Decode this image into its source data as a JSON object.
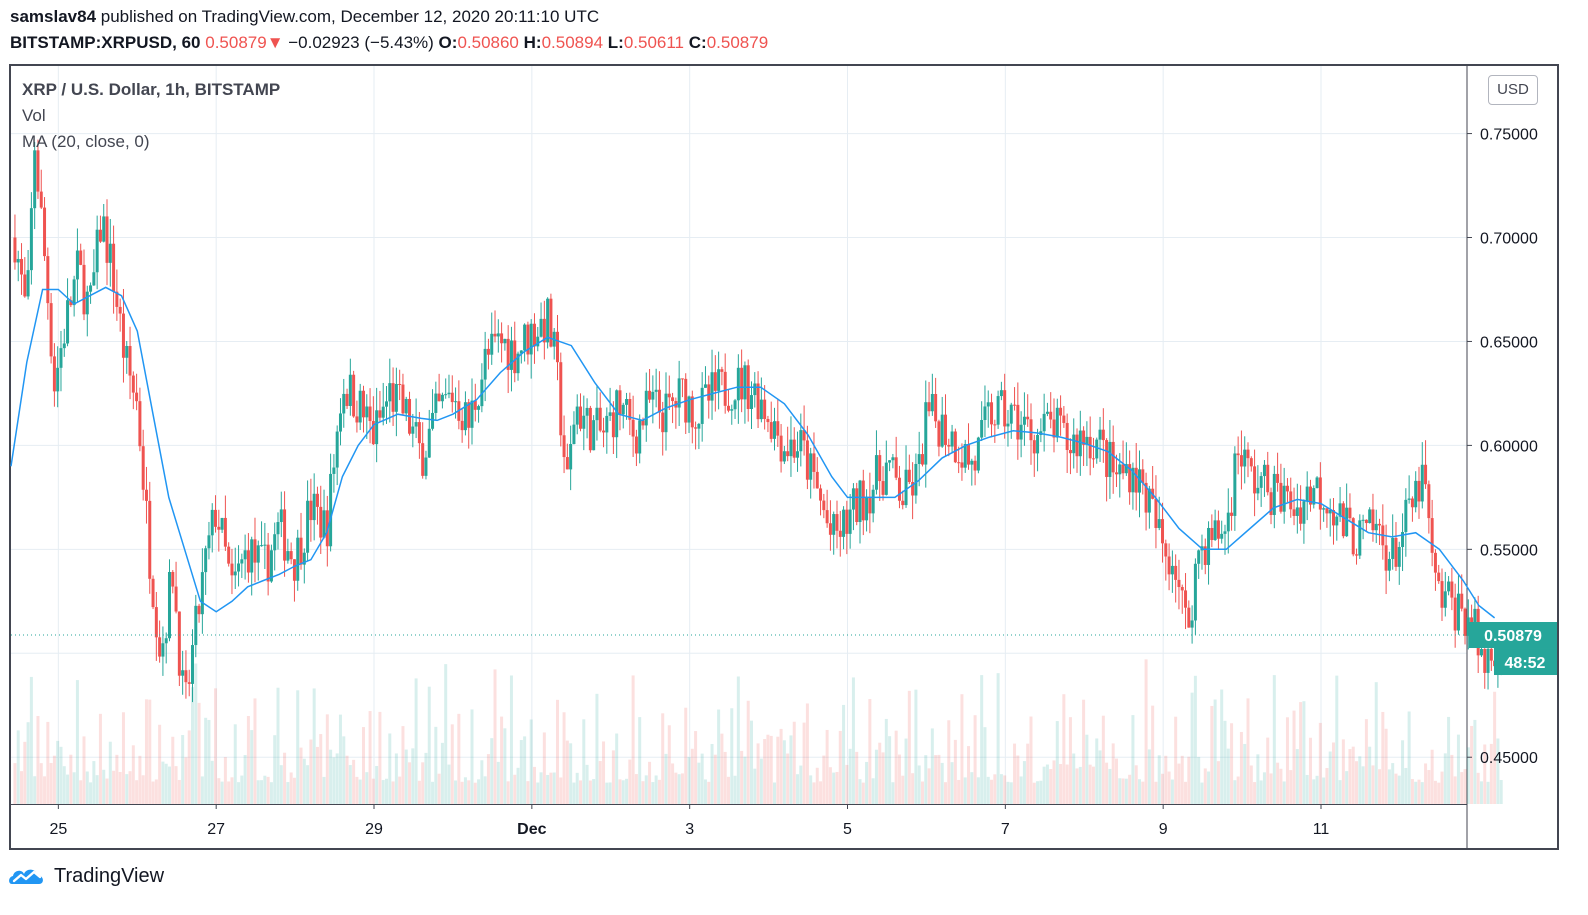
{
  "header": {
    "author": "samslav84",
    "published_text": "published on TradingView.com, December 12, 2020 20:11:10 UTC",
    "symbol": "BITSTAMP:XRPUSD, 60",
    "last": "0.50879",
    "down_arrow": "▼",
    "change": "−0.02923 (−5.43%)",
    "o_label": "O:",
    "o": "0.50860",
    "h_label": "H:",
    "h": "0.50894",
    "l_label": "L:",
    "l": "0.50611",
    "c_label": "C:",
    "c": "0.50879"
  },
  "legend": {
    "title": "XRP / U.S. Dollar, 1h, BITSTAMP",
    "vol": "Vol",
    "ma": "MA (20, close, 0)"
  },
  "currency": "USD",
  "footer": {
    "brand": "TradingView",
    "logo_icon": "tradingview-cloud-icon"
  },
  "colors": {
    "up": "#26a69a",
    "down": "#ef5350",
    "ma": "#2196f3",
    "badge": "#26a69a",
    "grid": "#e6edf3"
  },
  "chart_data": {
    "type": "candlestick",
    "title": "XRP / U.S. Dollar, 1h, BITSTAMP",
    "interval": "1h",
    "currency": "USD",
    "x_tick_labels": [
      "25",
      "27",
      "29",
      "Dec",
      "3",
      "5",
      "7",
      "9",
      "11"
    ],
    "y_ticks": [
      "0.75000",
      "0.70000",
      "0.65000",
      "0.60000",
      "0.55000",
      "0.45000"
    ],
    "ylim": [
      0.4275,
      0.7825
    ],
    "x_range_days": [
      24.4,
      12.85
    ],
    "last_price": 0.50879,
    "last_price_label": "0.50879",
    "countdown": "48:52",
    "grid": true,
    "path": [
      [
        24.45,
        0.7
      ],
      [
        24.6,
        0.66
      ],
      [
        24.7,
        0.745
      ],
      [
        24.85,
        0.68
      ],
      [
        24.95,
        0.63
      ],
      [
        25.1,
        0.66
      ],
      [
        25.25,
        0.685
      ],
      [
        25.4,
        0.665
      ],
      [
        25.55,
        0.71
      ],
      [
        25.7,
        0.68
      ],
      [
        25.85,
        0.64
      ],
      [
        26.0,
        0.62
      ],
      [
        26.15,
        0.55
      ],
      [
        26.3,
        0.5
      ],
      [
        26.45,
        0.54
      ],
      [
        26.6,
        0.47
      ],
      [
        26.7,
        0.5
      ],
      [
        26.85,
        0.54
      ],
      [
        27.0,
        0.57
      ],
      [
        27.2,
        0.53
      ],
      [
        27.4,
        0.55
      ],
      [
        27.6,
        0.54
      ],
      [
        27.8,
        0.56
      ],
      [
        28.0,
        0.545
      ],
      [
        28.2,
        0.57
      ],
      [
        28.4,
        0.56
      ],
      [
        28.6,
        0.63
      ],
      [
        28.8,
        0.62
      ],
      [
        29.0,
        0.605
      ],
      [
        29.2,
        0.625
      ],
      [
        29.4,
        0.615
      ],
      [
        29.6,
        0.595
      ],
      [
        29.8,
        0.615
      ],
      [
        30.0,
        0.625
      ],
      [
        30.2,
        0.61
      ],
      [
        30.4,
        0.64
      ],
      [
        30.6,
        0.65
      ],
      [
        30.8,
        0.645
      ],
      [
        31.0,
        0.655
      ],
      [
        31.2,
        0.66
      ],
      [
        31.3,
        0.64
      ],
      [
        31.45,
        0.58
      ],
      [
        31.55,
        0.62
      ],
      [
        31.7,
        0.61
      ],
      [
        31.9,
        0.605
      ],
      [
        32.1,
        0.62
      ],
      [
        32.3,
        0.605
      ],
      [
        32.5,
        0.62
      ],
      [
        32.7,
        0.615
      ],
      [
        32.9,
        0.625
      ],
      [
        33.1,
        0.615
      ],
      [
        33.3,
        0.625
      ],
      [
        33.5,
        0.628
      ],
      [
        33.7,
        0.63
      ],
      [
        33.85,
        0.625
      ],
      [
        34.0,
        0.615
      ],
      [
        34.2,
        0.6
      ],
      [
        34.4,
        0.6
      ],
      [
        34.6,
        0.58
      ],
      [
        34.8,
        0.555
      ],
      [
        34.95,
        0.56
      ],
      [
        35.1,
        0.57
      ],
      [
        35.3,
        0.58
      ],
      [
        35.5,
        0.59
      ],
      [
        35.7,
        0.575
      ],
      [
        35.9,
        0.585
      ],
      [
        36.0,
        0.615
      ],
      [
        36.2,
        0.61
      ],
      [
        36.4,
        0.6
      ],
      [
        36.6,
        0.59
      ],
      [
        36.8,
        0.615
      ],
      [
        37.0,
        0.615
      ],
      [
        37.2,
        0.61
      ],
      [
        37.4,
        0.605
      ],
      [
        37.6,
        0.61
      ],
      [
        37.8,
        0.6
      ],
      [
        38.0,
        0.605
      ],
      [
        38.2,
        0.6
      ],
      [
        38.4,
        0.585
      ],
      [
        38.6,
        0.59
      ],
      [
        38.8,
        0.575
      ],
      [
        39.0,
        0.55
      ],
      [
        39.15,
        0.545
      ],
      [
        39.3,
        0.51
      ],
      [
        39.45,
        0.55
      ],
      [
        39.6,
        0.555
      ],
      [
        39.8,
        0.56
      ],
      [
        39.95,
        0.6
      ],
      [
        40.1,
        0.585
      ],
      [
        40.3,
        0.58
      ],
      [
        40.5,
        0.575
      ],
      [
        40.7,
        0.57
      ],
      [
        40.9,
        0.58
      ],
      [
        41.1,
        0.575
      ],
      [
        41.3,
        0.56
      ],
      [
        41.5,
        0.555
      ],
      [
        41.7,
        0.56
      ],
      [
        41.9,
        0.545
      ],
      [
        42.1,
        0.565
      ],
      [
        42.3,
        0.585
      ],
      [
        42.45,
        0.53
      ],
      [
        42.6,
        0.525
      ],
      [
        42.8,
        0.52
      ],
      [
        42.95,
        0.51
      ],
      [
        43.05,
        0.495
      ],
      [
        43.2,
        0.505
      ],
      [
        43.3,
        0.50879
      ]
    ],
    "ma_path": [
      [
        24.4,
        0.59
      ],
      [
        24.6,
        0.64
      ],
      [
        24.8,
        0.675
      ],
      [
        25.0,
        0.675
      ],
      [
        25.2,
        0.668
      ],
      [
        25.4,
        0.672
      ],
      [
        25.6,
        0.676
      ],
      [
        25.8,
        0.672
      ],
      [
        26.0,
        0.655
      ],
      [
        26.2,
        0.615
      ],
      [
        26.4,
        0.575
      ],
      [
        26.6,
        0.55
      ],
      [
        26.8,
        0.525
      ],
      [
        27.0,
        0.52
      ],
      [
        27.2,
        0.525
      ],
      [
        27.4,
        0.532
      ],
      [
        27.6,
        0.535
      ],
      [
        27.8,
        0.538
      ],
      [
        28.0,
        0.542
      ],
      [
        28.2,
        0.545
      ],
      [
        28.4,
        0.558
      ],
      [
        28.6,
        0.585
      ],
      [
        28.8,
        0.6
      ],
      [
        29.0,
        0.61
      ],
      [
        29.3,
        0.615
      ],
      [
        29.6,
        0.613
      ],
      [
        29.8,
        0.612
      ],
      [
        30.0,
        0.615
      ],
      [
        30.3,
        0.622
      ],
      [
        30.6,
        0.635
      ],
      [
        30.9,
        0.645
      ],
      [
        31.2,
        0.652
      ],
      [
        31.5,
        0.648
      ],
      [
        31.8,
        0.63
      ],
      [
        32.1,
        0.615
      ],
      [
        32.4,
        0.612
      ],
      [
        32.7,
        0.618
      ],
      [
        33.0,
        0.622
      ],
      [
        33.3,
        0.625
      ],
      [
        33.6,
        0.628
      ],
      [
        33.9,
        0.628
      ],
      [
        34.2,
        0.62
      ],
      [
        34.5,
        0.605
      ],
      [
        34.8,
        0.585
      ],
      [
        35.0,
        0.575
      ],
      [
        35.3,
        0.575
      ],
      [
        35.6,
        0.575
      ],
      [
        35.9,
        0.583
      ],
      [
        36.2,
        0.594
      ],
      [
        36.5,
        0.6
      ],
      [
        36.8,
        0.604
      ],
      [
        37.1,
        0.607
      ],
      [
        37.4,
        0.606
      ],
      [
        37.7,
        0.604
      ],
      [
        38.0,
        0.601
      ],
      [
        38.3,
        0.597
      ],
      [
        38.6,
        0.588
      ],
      [
        38.9,
        0.575
      ],
      [
        39.2,
        0.56
      ],
      [
        39.5,
        0.55
      ],
      [
        39.8,
        0.55
      ],
      [
        40.1,
        0.56
      ],
      [
        40.4,
        0.57
      ],
      [
        40.7,
        0.574
      ],
      [
        41.0,
        0.572
      ],
      [
        41.3,
        0.565
      ],
      [
        41.6,
        0.558
      ],
      [
        41.9,
        0.556
      ],
      [
        42.2,
        0.558
      ],
      [
        42.5,
        0.55
      ],
      [
        42.8,
        0.535
      ],
      [
        43.0,
        0.523
      ],
      [
        43.2,
        0.517
      ]
    ]
  }
}
